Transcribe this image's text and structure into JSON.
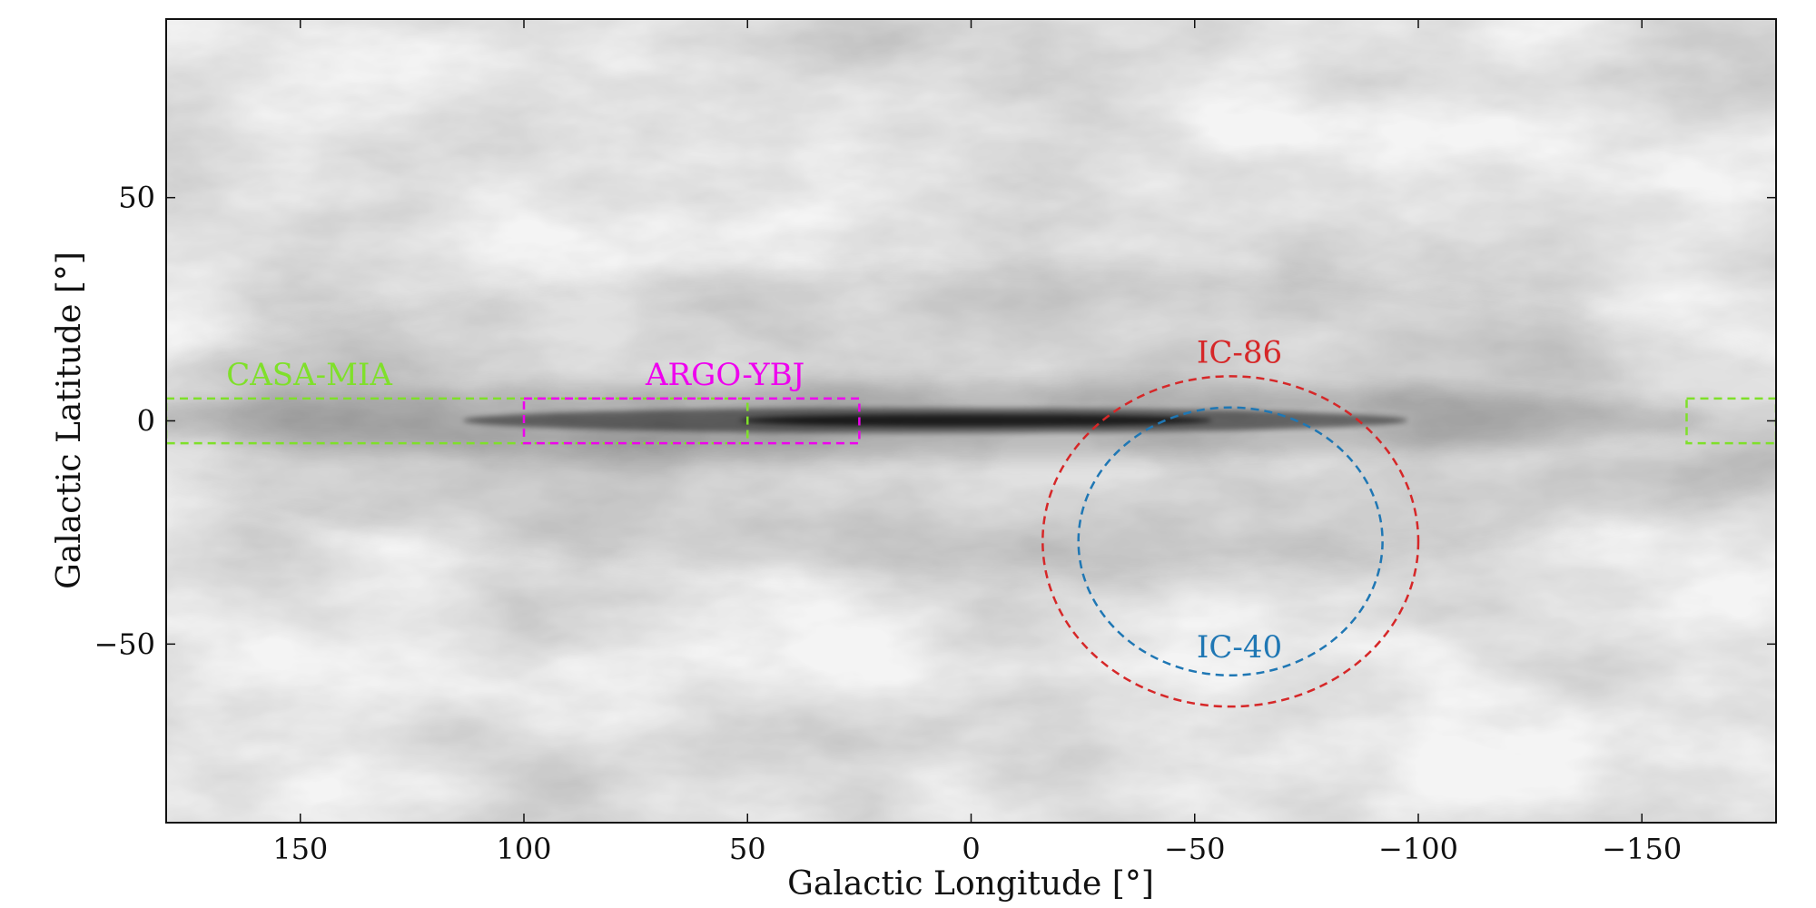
{
  "chart_data": {
    "type": "scatter",
    "title": "",
    "xlabel": "Galactic Longitude [°]",
    "ylabel": "Galactic Latitude [°]",
    "xlim": [
      180,
      -180
    ],
    "ylim": [
      -90,
      90
    ],
    "x_inverted": true,
    "grid": false,
    "background": "grayscale all-sky dust map, dark Galactic plane band at latitude 0",
    "xticks": [
      150,
      100,
      50,
      0,
      -50,
      -100,
      -150
    ],
    "xtick_labels": [
      "150",
      "100",
      "50",
      "0",
      "−50",
      "−100",
      "−150"
    ],
    "yticks": [
      50,
      0,
      -50
    ],
    "ytick_labels": [
      "50",
      "0",
      "−50"
    ],
    "regions": [
      {
        "name": "CASA-MIA",
        "shape": "box",
        "lon_min": 50,
        "lon_max": 180,
        "lat_min": -5,
        "lat_max": 5,
        "color": "#7fe02a",
        "style": "dashed",
        "label_lon": 148,
        "label_lat": 8
      },
      {
        "name": "CASA-MIA-wrap",
        "shape": "box",
        "lon_min": -180,
        "lon_max": -160,
        "lat_min": -5,
        "lat_max": 5,
        "color": "#7fe02a",
        "style": "dashed"
      },
      {
        "name": "ARGO-YBJ",
        "shape": "box",
        "lon_min": 25,
        "lon_max": 100,
        "lat_min": -5,
        "lat_max": 5,
        "color": "#ee00ee",
        "style": "dashed",
        "label_lon": 55,
        "label_lat": 8
      },
      {
        "name": "IC-86",
        "shape": "ellipse",
        "lon_center": -58,
        "lat_center": -27,
        "lon_radius": 42,
        "lat_radius": 37,
        "color": "#d62728",
        "style": "dashed",
        "label_lon": -60,
        "label_lat": 13
      },
      {
        "name": "IC-40",
        "shape": "ellipse",
        "lon_center": -58,
        "lat_center": -27,
        "lon_radius": 34,
        "lat_radius": 30,
        "color": "#1f77b4",
        "style": "dashed",
        "label_lon": -60,
        "label_lat": -53
      }
    ],
    "label_texts": {
      "casa": "CASA-MIA",
      "argo": "ARGO-YBJ",
      "ic86": "IC-86",
      "ic40": "IC-40"
    }
  }
}
